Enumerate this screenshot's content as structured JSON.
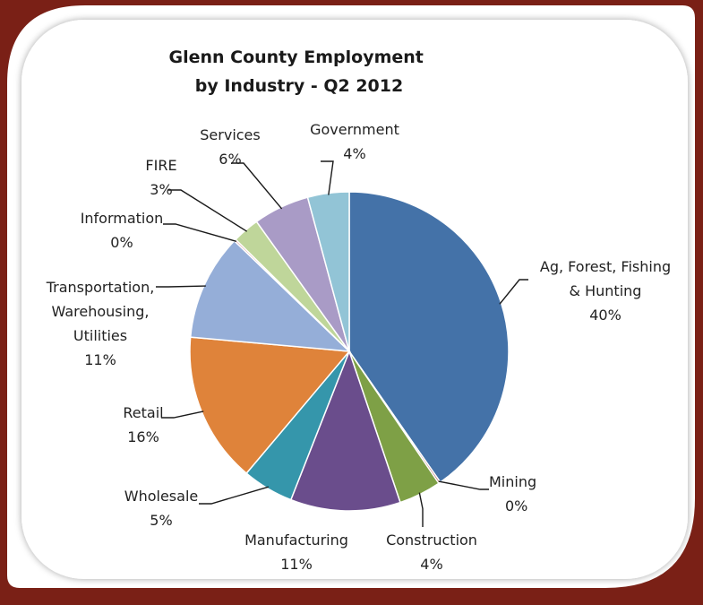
{
  "colors": {
    "frame": "#7a2016",
    "panel": "#ffffff",
    "slice_stroke": "#ffffff",
    "leader": "#1a1a1a"
  },
  "chart_data": {
    "type": "pie",
    "title_lines": [
      "Glenn County Employment",
      "by Industry - Q2 2012"
    ],
    "start_angle_deg": 0,
    "direction": "clockwise",
    "slices": [
      {
        "label_lines": [
          "Ag, Forest, Fishing",
          "& Hunting"
        ],
        "pct_label": "40%",
        "value": 41.2,
        "color": "#4472a8"
      },
      {
        "label_lines": [
          "Mining"
        ],
        "pct_label": "0%",
        "value": 0.2,
        "color": "#b05555"
      },
      {
        "label_lines": [
          "Construction"
        ],
        "pct_label": "4%",
        "value": 4.4,
        "color": "#7ea046"
      },
      {
        "label_lines": [
          "Manufacturing"
        ],
        "pct_label": "11%",
        "value": 11.4,
        "color": "#6a4d8c"
      },
      {
        "label_lines": [
          "Wholesale"
        ],
        "pct_label": "5%",
        "value": 5.3,
        "color": "#3596ab"
      },
      {
        "label_lines": [
          "Retail"
        ],
        "pct_label": "16%",
        "value": 15.6,
        "color": "#df833a"
      },
      {
        "label_lines": [
          "Transportation,",
          "Warehousing,",
          "Utilities"
        ],
        "pct_label": "11%",
        "value": 11.0,
        "color": "#95aed8"
      },
      {
        "label_lines": [
          "Information"
        ],
        "pct_label": "0%",
        "value": 0.2,
        "color": "#dc9a9a"
      },
      {
        "label_lines": [
          "FIRE"
        ],
        "pct_label": "3%",
        "value": 2.8,
        "color": "#bfd69a"
      },
      {
        "label_lines": [
          "Services"
        ],
        "pct_label": "6%",
        "value": 5.8,
        "color": "#a99bc6"
      },
      {
        "label_lines": [
          "Government"
        ],
        "pct_label": "4%",
        "value": 4.3,
        "color": "#92c4d6"
      }
    ]
  }
}
